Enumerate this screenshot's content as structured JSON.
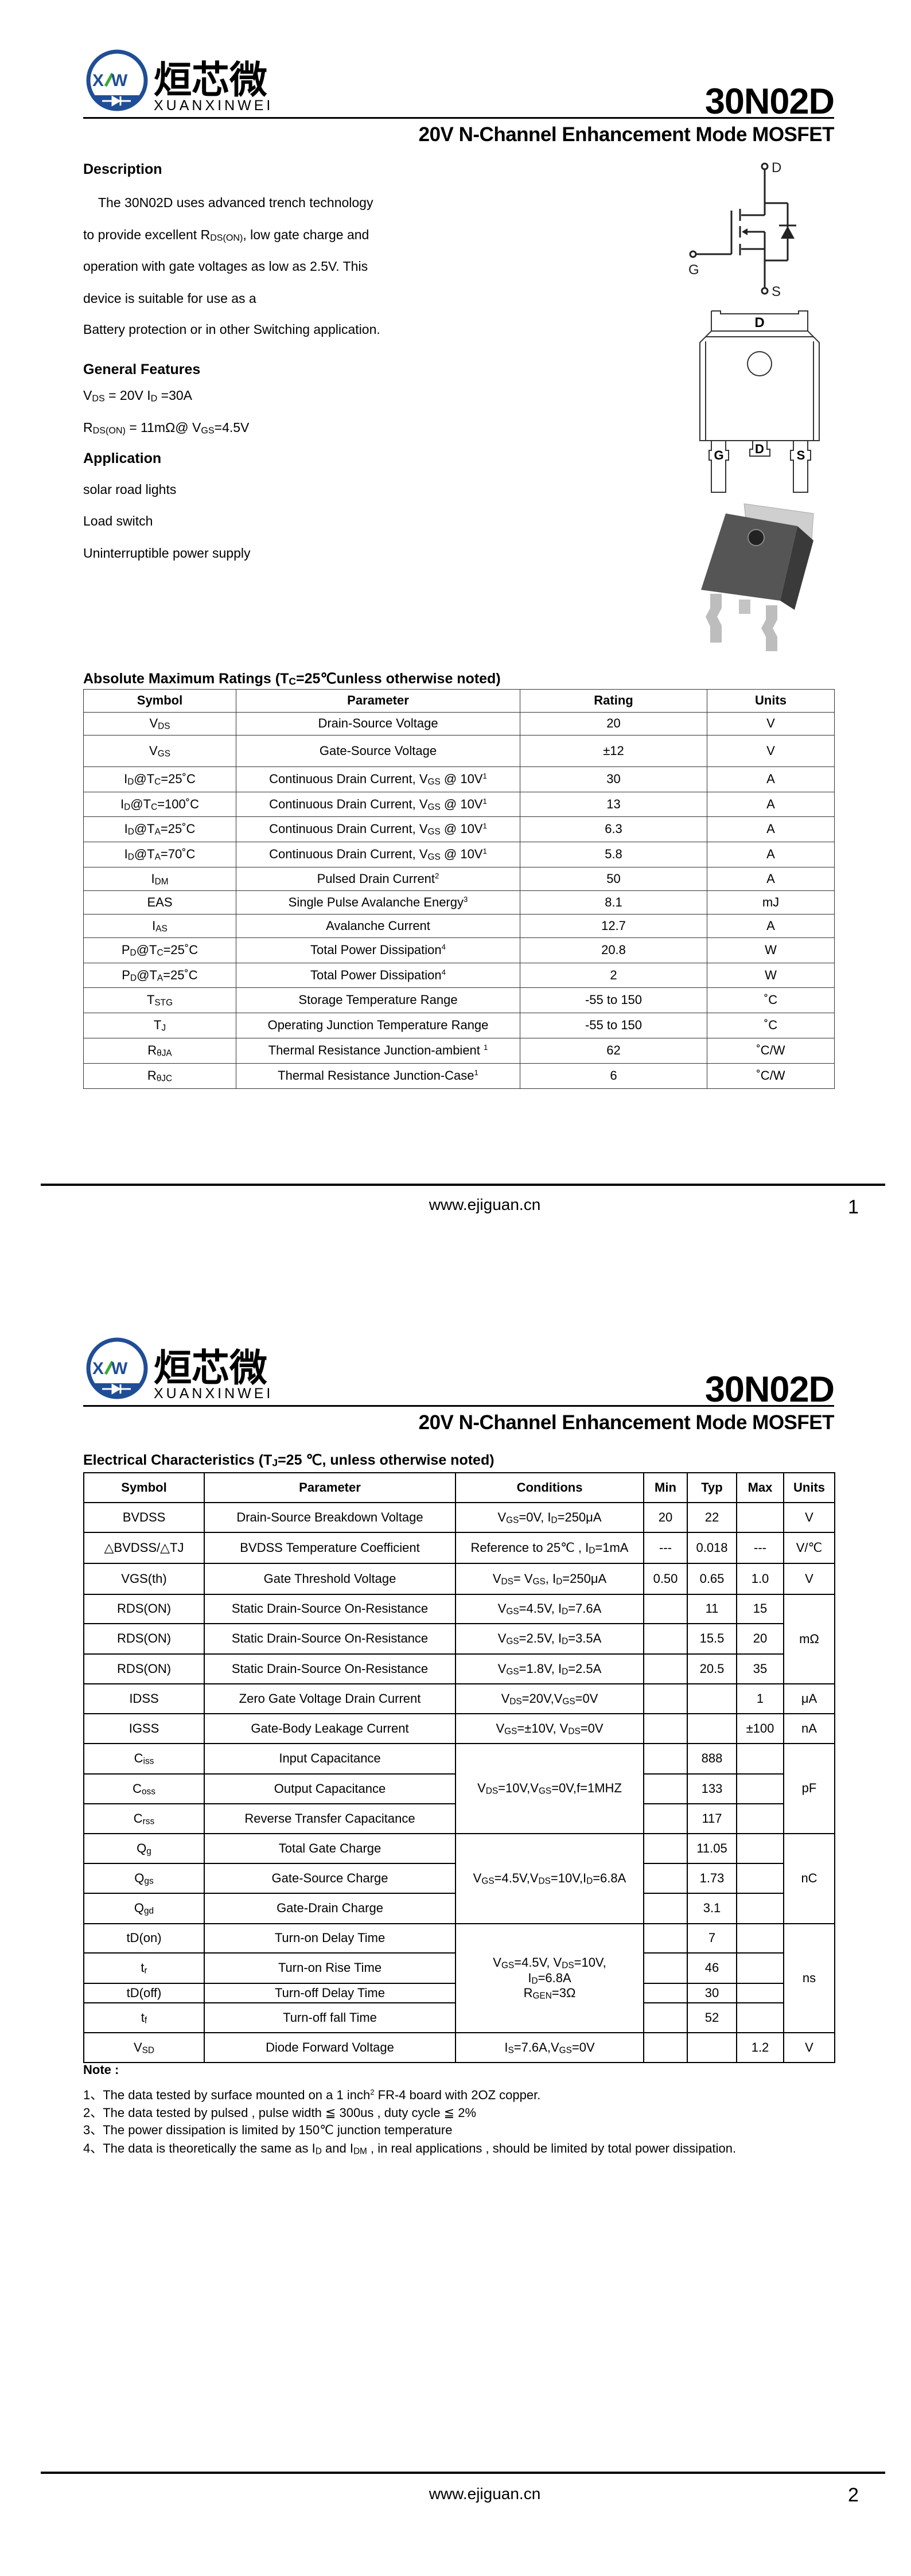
{
  "brand": {
    "logo_letters": "XW",
    "chinese_name": "烜芯微",
    "latin_name": "XUANXINWEI",
    "blue": "#1f4e96",
    "green": "#3aa935"
  },
  "header": {
    "part_number": "30N02D",
    "subtitle": "20V N-Channel Enhancement Mode MOSFET"
  },
  "description": {
    "heading": "Description",
    "lines": [
      "The  30N02D uses advanced trench technology",
      "to provide excellent R_{DS(ON)}, low gate charge and",
      "operation with gate voltages as low as 2.5V. This",
      "device is suitable for use as a",
      "Battery protection or in other Switching application."
    ]
  },
  "features": {
    "heading": "General Features",
    "lines": [
      "V_{DS} = 20V  I_{D} =30A",
      "R_{DS(ON)} = 11mΩ@ V_{GS}=4.5V"
    ]
  },
  "application": {
    "heading": "Application",
    "items": [
      "solar road lights",
      "Load switch",
      "Uninterruptible power supply"
    ]
  },
  "schematic": {
    "drain": "D",
    "gate": "G",
    "source": "S"
  },
  "package": {
    "tab": "D",
    "pins": [
      "G",
      "D",
      "S"
    ]
  },
  "abs_max": {
    "title": "Absolute Maximum Ratings (T_{C}=25℃unless otherwise noted)",
    "headers": [
      "Symbol",
      "Parameter",
      "Rating",
      "Units"
    ],
    "rows": [
      [
        "V_{DS}",
        "Drain-Source Voltage",
        "20",
        "V"
      ],
      [
        "V_{GS}",
        "Gate-Source Voltage",
        "±12",
        "V"
      ],
      [
        "I_{D}@T_{C}=25˚C",
        "Continuous Drain Current, V_{GS} @ 10V^{1}",
        "30",
        "A"
      ],
      [
        "I_{D}@T_{C}=100˚C",
        "Continuous Drain Current, V_{GS} @ 10V^{1}",
        "13",
        "A"
      ],
      [
        "I_{D}@T_{A}=25˚C",
        "Continuous Drain Current, V_{GS} @ 10V^{1}",
        "6.3",
        "A"
      ],
      [
        "I_{D}@T_{A}=70˚C",
        "Continuous Drain Current, V_{GS} @ 10V^{1}",
        "5.8",
        "A"
      ],
      [
        "I_{DM}",
        "Pulsed Drain Current^{2}",
        "50",
        "A"
      ],
      [
        "EAS",
        "Single Pulse Avalanche Energy^{3}",
        "8.1",
        "mJ"
      ],
      [
        "I_{AS}",
        "Avalanche Current",
        "12.7",
        "A"
      ],
      [
        "P_{D}@T_{C}=25˚C",
        "Total Power Dissipation^{4}",
        "20.8",
        "W"
      ],
      [
        "P_{D}@T_{A}=25˚C",
        "Total Power Dissipation^{4}",
        "2",
        "W"
      ],
      [
        "T_{STG}",
        "Storage Temperature Range",
        "-55 to 150",
        "˚C"
      ],
      [
        "T_{J}",
        "Operating Junction Temperature Range",
        "-55 to 150",
        "˚C"
      ],
      [
        "R_{θJA}",
        "Thermal Resistance Junction-ambient ^{1}",
        "62",
        "˚C/W"
      ],
      [
        "R_{θJC}",
        "Thermal Resistance Junction-Case^{1}",
        "6",
        "˚C/W"
      ]
    ]
  },
  "electrical": {
    "title": "Electrical Characteristics (T_{J}=25 ℃, unless otherwise noted)",
    "headers": [
      "Symbol",
      "Parameter",
      "Conditions",
      "Min",
      "Typ",
      "Max",
      "Units"
    ],
    "rows": [
      [
        "BVDSS",
        "Drain-Source Breakdown Voltage",
        "V_{GS}=0V, I_{D}=250μA",
        "20",
        "22",
        "",
        "V"
      ],
      [
        "△BVDSS/△TJ",
        "BVDSS Temperature Coefficient",
        "Reference to 25℃ , I_{D}=1mA",
        "---",
        "0.018",
        "---",
        "V/℃"
      ],
      [
        "VGS(th)",
        "Gate Threshold Voltage",
        "V_{DS}= V_{GS}, I_{D}=250μA",
        "0.50",
        "0.65",
        "1.0",
        "V"
      ],
      [
        "RDS(ON)",
        "Static Drain-Source On-Resistance",
        "V_{GS}=4.5V, I_{D}=7.6A",
        "",
        "11",
        "15",
        {
          "text": "mΩ",
          "rowspan": 3
        }
      ],
      [
        "RDS(ON)",
        "Static Drain-Source On-Resistance",
        "V_{GS}=2.5V, I_{D}=3.5A",
        "",
        "15.5",
        "20",
        null
      ],
      [
        "RDS(ON)",
        "Static Drain-Source On-Resistance",
        "V_{GS}=1.8V, I_{D}=2.5A",
        "",
        "20.5",
        "35",
        null
      ],
      [
        "IDSS",
        "Zero Gate Voltage Drain Current",
        "V_{DS}=20V,V_{GS}=0V",
        "",
        "",
        "1",
        "μA"
      ],
      [
        "IGSS",
        "Gate-Body Leakage Current",
        "V_{GS}=±10V, V_{DS}=0V",
        "",
        "",
        "±100",
        "nA"
      ],
      [
        "C_{iss}",
        "Input Capacitance",
        {
          "text": "V_{DS}=10V,V_{GS}=0V,f=1MHZ",
          "rowspan": 3
        },
        "",
        "888",
        "",
        {
          "text": "pF",
          "rowspan": 3
        }
      ],
      [
        "C_{oss}",
        "Output Capacitance",
        null,
        "",
        "133",
        "",
        null
      ],
      [
        "C_{rss}",
        "Reverse Transfer Capacitance",
        null,
        "",
        "117",
        "",
        null
      ],
      [
        "Q_{g}",
        "Total Gate Charge",
        {
          "text": "V_{GS}=4.5V,V_{DS}=10V,I_{D}=6.8A",
          "rowspan": 3
        },
        "",
        "11.05",
        "",
        {
          "text": "nC",
          "rowspan": 3
        }
      ],
      [
        "Q_{gs}",
        "Gate-Source Charge",
        null,
        "",
        "1.73",
        "",
        null
      ],
      [
        "Q_{gd}",
        "Gate-Drain Charge",
        null,
        "",
        "3.1",
        "",
        null
      ],
      [
        "tD(on)",
        "Turn-on Delay Time",
        {
          "text": "V_{GS}=4.5V, V_{DS}=10V,\nI_{D}=6.8A\nR_{GEN}=3Ω",
          "rowspan": 4
        },
        "",
        "7",
        "",
        {
          "text": "ns",
          "rowspan": 4
        }
      ],
      [
        "t_{r}",
        "Turn-on Rise Time",
        null,
        "",
        "46",
        "",
        null
      ],
      [
        "tD(off)",
        "Turn-off Delay Time",
        null,
        "",
        "30",
        "",
        null
      ],
      [
        "t_{f}",
        "Turn-off fall Time",
        null,
        "",
        "52",
        "",
        null
      ],
      [
        "V_{SD}",
        "Diode Forward Voltage",
        "I_{S}=7.6A,V_{GS}=0V",
        "",
        "",
        "1.2",
        "V"
      ]
    ]
  },
  "notes": {
    "heading": "Note :",
    "items": [
      "1、The data tested by surface mounted on a 1 inch^{2} FR-4 board with 2OZ copper.",
      "2、The data tested by pulsed , pulse width ≦ 300us , duty cycle ≦ 2%",
      "3、The power dissipation is limited by 150℃ junction temperature",
      "4、The data is theoretically the same as I_{D} and I_{DM} , in real applications , should be limited by total power dissipation."
    ]
  },
  "footer": {
    "url": "www.ejiguan.cn",
    "pages": [
      "1",
      "2"
    ]
  }
}
